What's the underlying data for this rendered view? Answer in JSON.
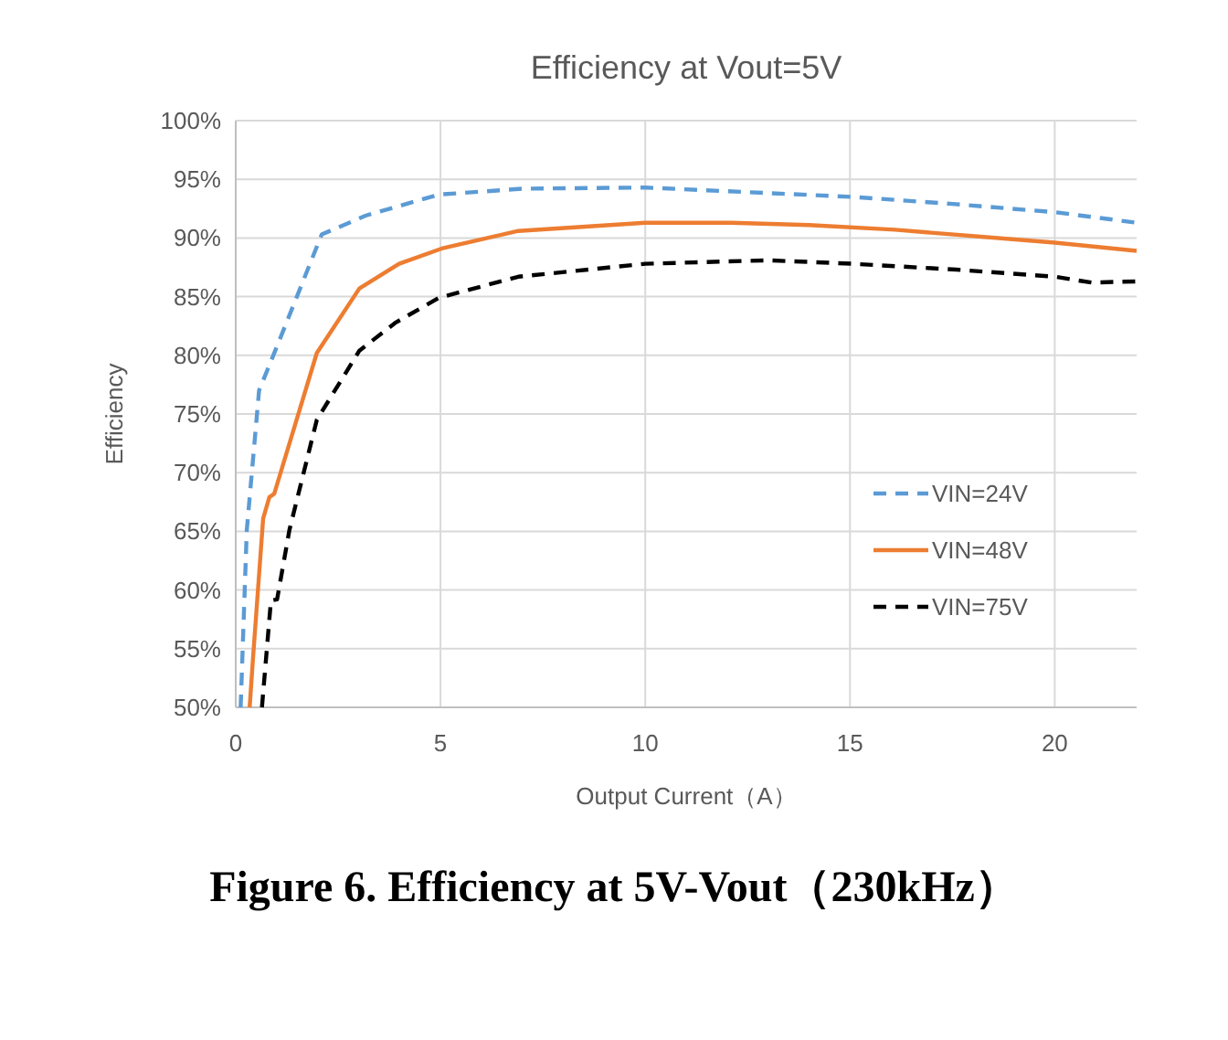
{
  "chart_data": {
    "type": "line",
    "title": "Efficiency at Vout=5V",
    "xlabel": "Output Current（A）",
    "ylabel": "Efficiency",
    "annotations": [
      "Figure 6. Efficiency at 5V-Vout（230kHz）"
    ],
    "xlim": [
      0,
      22
    ],
    "xticks": [
      0,
      5,
      10,
      15,
      20
    ],
    "ylim": [
      50,
      100
    ],
    "yticks": [
      {
        "value": 50,
        "label": "50%"
      },
      {
        "value": 55,
        "label": "55%"
      },
      {
        "value": 60,
        "label": "60%"
      },
      {
        "value": 65,
        "label": "65%"
      },
      {
        "value": 70,
        "label": "70%"
      },
      {
        "value": 75,
        "label": "75%"
      },
      {
        "value": 80,
        "label": "80%"
      },
      {
        "value": 85,
        "label": "85%"
      },
      {
        "value": 90,
        "label": "90%"
      },
      {
        "value": 95,
        "label": "95%"
      },
      {
        "value": 100,
        "label": "100%"
      }
    ],
    "grid": true,
    "legend": "right",
    "marker": "none",
    "series": [
      {
        "name": "VIN=24V",
        "color": "#5b9bd5",
        "line_style": "dashed",
        "x": [
          0.12,
          0.27,
          0.57,
          1.0,
          2.1,
          3.17,
          4.96,
          7,
          10,
          15.07,
          17.5,
          20,
          22
        ],
        "values": [
          50,
          65.1,
          77,
          80.7,
          90.3,
          91.9,
          93.7,
          94.2,
          94.3,
          93.5,
          92.9,
          92.2,
          91.3
        ]
      },
      {
        "name": "VIN=48V",
        "color": "#ed7d31",
        "line_style": "solid",
        "x": [
          0.34,
          0.42,
          0.67,
          0.82,
          0.94,
          1.98,
          3.02,
          3.99,
          5.03,
          6.9,
          10,
          12.1,
          14,
          16.1,
          20,
          22
        ],
        "values": [
          50,
          54.1,
          66.1,
          67.9,
          68.2,
          80.2,
          85.7,
          87.8,
          89.1,
          90.6,
          91.3,
          91.3,
          91.1,
          90.7,
          89.6,
          88.9
        ]
      },
      {
        "name": "VIN=75V",
        "color": "#000000",
        "line_style": "dashed",
        "x": [
          0.64,
          0.86,
          1.01,
          1.31,
          1.98,
          3.02,
          3.91,
          4.96,
          6.9,
          10,
          13,
          15.07,
          17.6,
          20,
          20.9,
          22
        ],
        "values": [
          50,
          59.1,
          59.2,
          65.1,
          74.5,
          80.4,
          82.8,
          84.9,
          86.7,
          87.8,
          88.1,
          87.8,
          87.3,
          86.7,
          86.2,
          86.3
        ]
      }
    ]
  }
}
